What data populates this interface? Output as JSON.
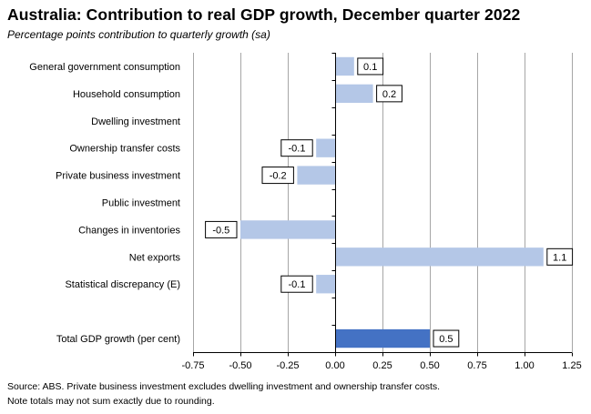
{
  "chart_data": {
    "type": "bar",
    "orientation": "horizontal",
    "title": "Australia:  Contribution  to real GDP growth, December quarter 2022",
    "subtitle": "Percentage points contribution to quarterly growth (sa)",
    "categories": [
      "General government consumption",
      "Household consumption",
      "Dwelling investment",
      "Ownership transfer costs",
      "Private business investment",
      "Public investment",
      "Changes in inventories",
      "Net exports",
      "Statistical discrepancy (E)",
      "",
      "Total GDP growth (per cent)"
    ],
    "values": [
      0.1,
      0.2,
      null,
      -0.1,
      -0.2,
      null,
      -0.5,
      1.1,
      -0.1,
      null,
      0.5
    ],
    "value_labels": [
      "0.1",
      "0.2",
      "",
      "-0.1",
      "-0.2",
      "",
      "-0.5",
      "1.1",
      "-0.1",
      "",
      "0.5"
    ],
    "highlight_category": "Total GDP growth (per cent)",
    "xlim": [
      -0.75,
      1.25
    ],
    "xticks": [
      -0.75,
      -0.5,
      -0.25,
      0.0,
      0.25,
      0.5,
      0.75,
      1.0,
      1.25
    ],
    "xtick_labels": [
      "-0.75",
      "-0.50",
      "-0.25",
      "0.00",
      "0.25",
      "0.50",
      "0.75",
      "1.00",
      "1.25"
    ],
    "xlabel": "",
    "ylabel": "",
    "grid": "vertical",
    "colors": {
      "bar": "#b4c7e7",
      "highlight_bar": "#4472c4",
      "grid": "#a6a6a6",
      "axis": "#000000"
    }
  },
  "notes": {
    "source": "Source: ABS. Private business investment excludes dwelling investment and ownership transfer costs.",
    "rounding": "Note totals may not sum exactly due to rounding."
  }
}
